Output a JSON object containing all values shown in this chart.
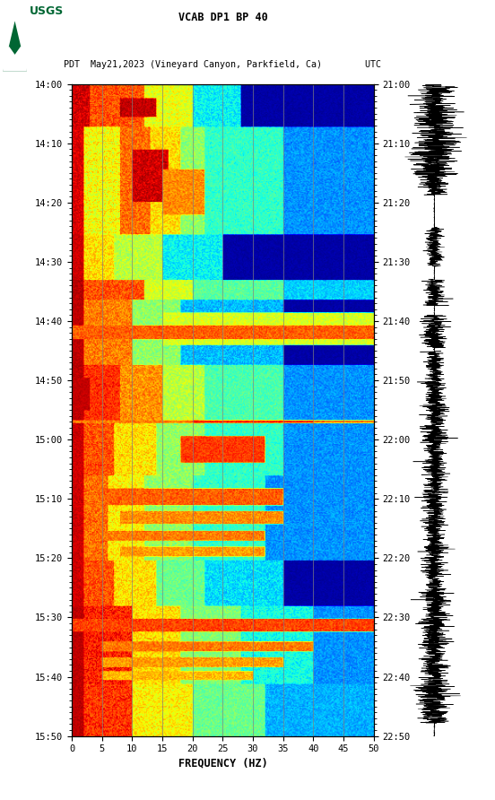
{
  "title_line1": "VCAB DP1 BP 40",
  "title_line2": "PDT  May21,2023 (Vineyard Canyon, Parkfield, Ca)        UTC",
  "xlabel": "FREQUENCY (HZ)",
  "freq_min": 0,
  "freq_max": 50,
  "left_ticks_pdt": [
    "14:00",
    "14:10",
    "14:20",
    "14:30",
    "14:40",
    "14:50",
    "15:00",
    "15:10",
    "15:20",
    "15:30",
    "15:40",
    "15:50"
  ],
  "right_ticks_utc": [
    "21:00",
    "21:10",
    "21:20",
    "21:30",
    "21:40",
    "21:50",
    "22:00",
    "22:10",
    "22:20",
    "22:30",
    "22:40",
    "22:50"
  ],
  "freq_ticks": [
    0,
    5,
    10,
    15,
    20,
    25,
    30,
    35,
    40,
    45,
    50
  ],
  "vertical_grid_freqs": [
    5,
    10,
    15,
    20,
    25,
    30,
    35,
    40,
    45
  ],
  "fig_width": 5.52,
  "fig_height": 8.92,
  "usgs_logo_color": "#006633"
}
